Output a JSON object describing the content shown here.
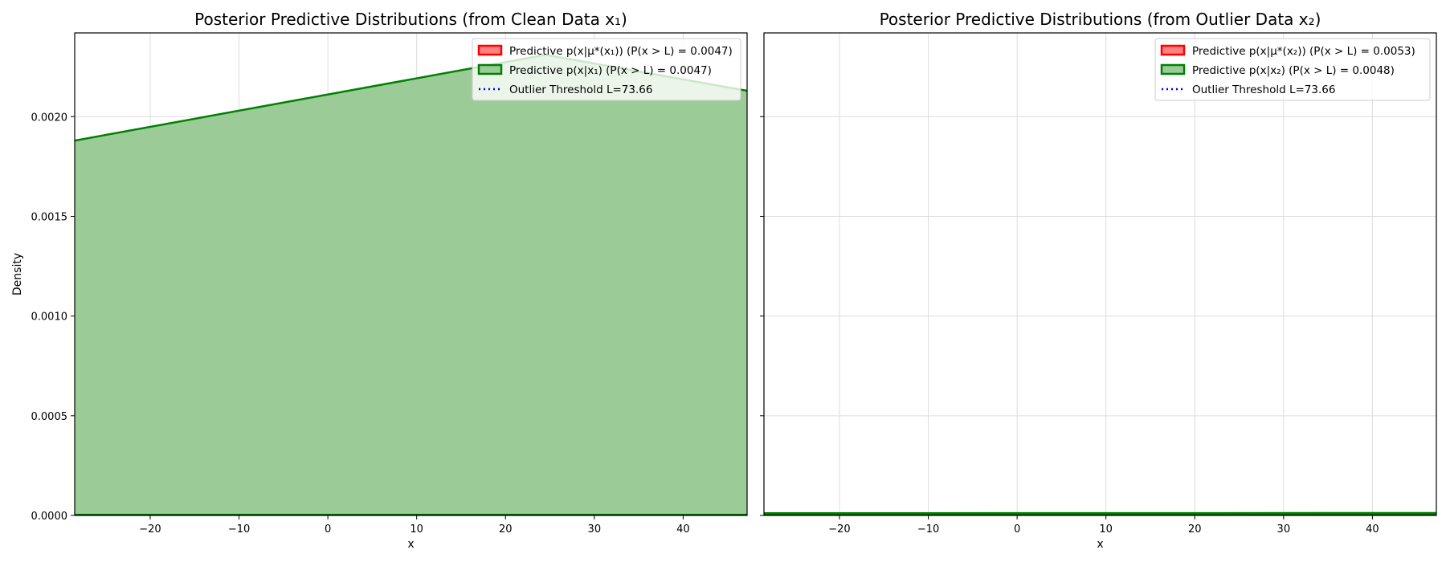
{
  "chart_data": [
    {
      "type": "area",
      "title": "Posterior Predictive Distributions (from Clean Data x₁)",
      "xlabel": "x",
      "ylabel": "Density",
      "xlim": [
        -28.5,
        47.2
      ],
      "ylim": [
        0,
        0.00242
      ],
      "xticks": [
        -20,
        -10,
        0,
        10,
        20,
        30,
        40
      ],
      "xtick_labels": [
        "−20",
        "−10",
        "0",
        "10",
        "20",
        "30",
        "40"
      ],
      "yticks": [
        0,
        0.0005,
        0.001,
        0.0015,
        0.002
      ],
      "ytick_labels": [
        "0.0000",
        "0.0005",
        "0.0010",
        "0.0015",
        "0.0020"
      ],
      "grid": true,
      "legend_position": "top-right",
      "series": [
        {
          "name": "Predictive p(x|μ*(x₁)) (P(x > L) = 0.0047)",
          "color": "#ff0000",
          "fill": "#ff8080",
          "x": [
            -28.5,
            47.2
          ],
          "y": [
            0,
            0
          ]
        },
        {
          "name": "Predictive p(x|x₁) (P(x > L) = 0.0047)",
          "color": "#008000",
          "fill": "#9bcc98",
          "x": [
            -28.5,
            24.5,
            47.2
          ],
          "y": [
            0.00188,
            0.00231,
            0.00213
          ]
        },
        {
          "name": "Outlier Threshold L=73.66",
          "color": "#0000ff",
          "style": "dotted",
          "x_value": 73.66
        }
      ]
    },
    {
      "type": "area",
      "title": "Posterior Predictive Distributions (from Outlier Data x₂)",
      "xlabel": "x",
      "ylabel": "",
      "xlim": [
        -28.5,
        47.2
      ],
      "ylim": [
        0,
        0.00242
      ],
      "xticks": [
        -20,
        -10,
        0,
        10,
        20,
        30,
        40
      ],
      "xtick_labels": [
        "−20",
        "−10",
        "0",
        "10",
        "20",
        "30",
        "40"
      ],
      "yticks": [
        0,
        0.0005,
        0.001,
        0.0015,
        0.002
      ],
      "ytick_labels": [
        "",
        "",
        "",
        "",
        ""
      ],
      "grid": true,
      "legend_position": "top-right",
      "series": [
        {
          "name": "Predictive p(x|μ*(x₂)) (P(x > L) = 0.0053)",
          "color": "#ff0000",
          "fill": "#ff8080",
          "x": [
            -28.5,
            47.2
          ],
          "y": [
            0,
            0
          ]
        },
        {
          "name": "Predictive p(x|x₂) (P(x > L) = 0.0048)",
          "color": "#008000",
          "fill": "#9bcc98",
          "x": [
            -28.5,
            47.2
          ],
          "y": [
            8e-06,
            9e-06
          ]
        },
        {
          "name": "Outlier Threshold L=73.66",
          "color": "#0000ff",
          "style": "dotted",
          "x_value": 73.66
        }
      ]
    }
  ]
}
